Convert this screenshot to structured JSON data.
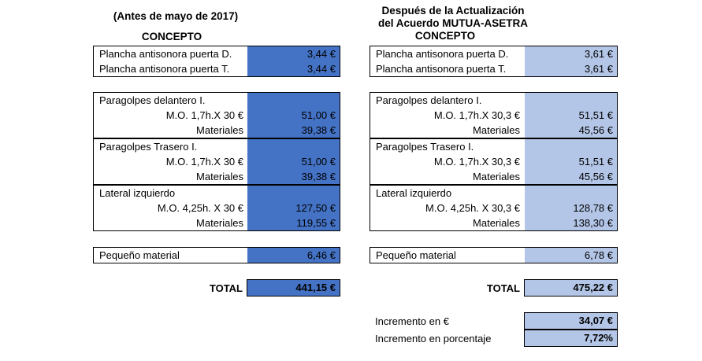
{
  "left": {
    "header_line1": "(Antes de mayo de 2017)",
    "header_line2": "CONCEPTO",
    "plancha_d": {
      "label": "Plancha antisonora puerta D.",
      "value": "3,44 €"
    },
    "plancha_t": {
      "label": "Plancha antisonora puerta T.",
      "value": "3,44 €"
    },
    "delantero": {
      "title": "Paragolpes delantero I.",
      "mo_label": "M.O. 1,7h.X 30 €",
      "mo_value": "51,00 €",
      "mat_label": "Materiales",
      "mat_value": "39,38 €"
    },
    "trasero": {
      "title": "Paragolpes Trasero I.",
      "mo_label": "M.O. 1,7h.X 30 €",
      "mo_value": "51,00 €",
      "mat_label": "Materiales",
      "mat_value": "39,38 €"
    },
    "lateral": {
      "title": "Lateral izquierdo",
      "mo_label": "M.O. 4,25h. X 30 €",
      "mo_value": "127,50 €",
      "mat_label": "Materiales",
      "mat_value": "119,55 €"
    },
    "pequeno": {
      "label": "Pequeño material",
      "value": "6,46 €"
    },
    "total": {
      "label": "TOTAL",
      "value": "441,15 €"
    }
  },
  "right": {
    "header_line1": "Después de la Actualización",
    "header_line2": "del Acuerdo MUTUA-ASETRA",
    "header_line3": "CONCEPTO",
    "plancha_d": {
      "label": "Plancha antisonora puerta D.",
      "value": "3,61 €"
    },
    "plancha_t": {
      "label": "Plancha antisonora puerta T.",
      "value": "3,61 €"
    },
    "delantero": {
      "title": "Paragolpes delantero I.",
      "mo_label": "M.O. 1,7h.X 30,3 €",
      "mo_value": "51,51 €",
      "mat_label": "Materiales",
      "mat_value": "45,56 €"
    },
    "trasero": {
      "title": "Paragolpes Trasero I.",
      "mo_label": "M.O. 1,7h.X 30,3 €",
      "mo_value": "51,51 €",
      "mat_label": "Materiales",
      "mat_value": "45,56 €"
    },
    "lateral": {
      "title": "Lateral izquierdo",
      "mo_label": "M.O. 4,25h. X 30,3 €",
      "mo_value": "128,78 €",
      "mat_label": "Materiales",
      "mat_value": "138,30 €"
    },
    "pequeno": {
      "label": "Pequeño material",
      "value": "6,78 €"
    },
    "total": {
      "label": "TOTAL",
      "value": "475,22 €"
    },
    "incremento_eur": {
      "label": "Incremento en €",
      "value": "34,07 €"
    },
    "incremento_pct": {
      "label": "Incremento en porcentaje",
      "value": "7,72%"
    }
  },
  "colors": {
    "left_fill": "#4472C4",
    "right_fill": "#B4C6E7"
  }
}
